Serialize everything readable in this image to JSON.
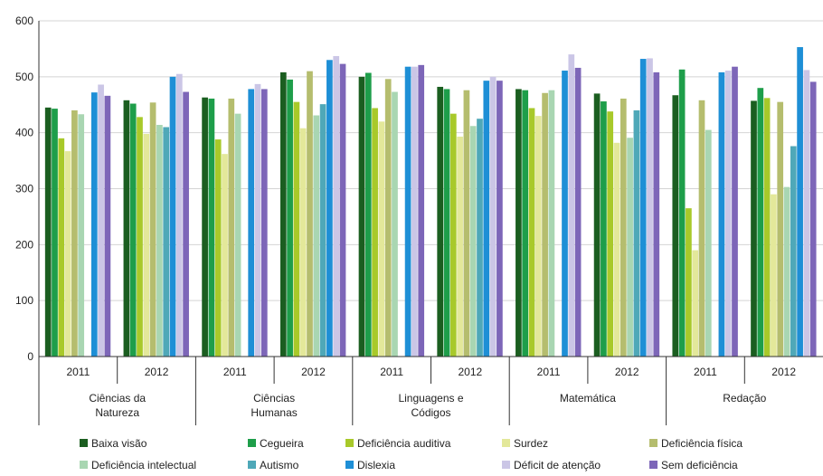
{
  "chart_data": {
    "type": "bar",
    "title": "",
    "xlabel": "",
    "ylabel": "",
    "ylim": [
      0,
      600
    ],
    "yticks": [
      0,
      100,
      200,
      300,
      400,
      500,
      600
    ],
    "grid": true,
    "legend_position": "bottom",
    "groups": [
      {
        "subject": [
          "Ciências da",
          "Natureza"
        ],
        "years": [
          "2011",
          "2012"
        ]
      },
      {
        "subject": [
          "Ciências",
          "Humanas"
        ],
        "years": [
          "2011",
          "2012"
        ]
      },
      {
        "subject": [
          "Linguagens e",
          "Códigos"
        ],
        "years": [
          "2011",
          "2012"
        ]
      },
      {
        "subject": [
          "Matemática"
        ],
        "years": [
          "2011",
          "2012"
        ]
      },
      {
        "subject": [
          "Redação"
        ],
        "years": [
          "2011",
          "2012"
        ]
      }
    ],
    "categories": [
      "Ciências da Natureza 2011",
      "Ciências da Natureza 2012",
      "Ciências Humanas 2011",
      "Ciências Humanas 2012",
      "Linguagens e Códigos 2011",
      "Linguagens e Códigos 2012",
      "Matemática 2011",
      "Matemática 2012",
      "Redação 2011",
      "Redação 2012"
    ],
    "series": [
      {
        "name": "Baixa visão",
        "color": "#1b5e20",
        "values": [
          445,
          458,
          463,
          508,
          500,
          482,
          478,
          470,
          467,
          457
        ]
      },
      {
        "name": "Cegueira",
        "color": "#1e9e4a",
        "values": [
          443,
          452,
          461,
          495,
          507,
          478,
          476,
          456,
          513,
          480
        ]
      },
      {
        "name": "Deficiência auditiva",
        "color": "#a8c92a",
        "values": [
          390,
          428,
          388,
          455,
          444,
          434,
          444,
          438,
          265,
          462
        ]
      },
      {
        "name": "Surdez",
        "color": "#e3e89a",
        "values": [
          367,
          398,
          362,
          408,
          420,
          393,
          430,
          382,
          190,
          290
        ]
      },
      {
        "name": "Deficiência física",
        "color": "#b5bd6e",
        "values": [
          440,
          454,
          461,
          510,
          496,
          476,
          471,
          461,
          458,
          455
        ]
      },
      {
        "name": "Deficiência intelectual",
        "color": "#a9d6b2",
        "values": [
          433,
          414,
          434,
          431,
          473,
          412,
          476,
          391,
          405,
          303
        ]
      },
      {
        "name": "Autismo",
        "color": "#4fa8b8",
        "values": [
          0,
          410,
          0,
          451,
          0,
          425,
          0,
          440,
          0,
          376
        ]
      },
      {
        "name": "Dislexia",
        "color": "#1e8fd6",
        "values": [
          472,
          500,
          478,
          530,
          518,
          493,
          511,
          532,
          508,
          553
        ]
      },
      {
        "name": "Déficit de atenção",
        "color": "#cbc6e6",
        "values": [
          486,
          505,
          487,
          537,
          518,
          500,
          540,
          533,
          511,
          512
        ]
      },
      {
        "name": "Sem deficiência",
        "color": "#7d66b8",
        "values": [
          466,
          473,
          478,
          523,
          521,
          493,
          516,
          508,
          518,
          491
        ]
      }
    ]
  }
}
